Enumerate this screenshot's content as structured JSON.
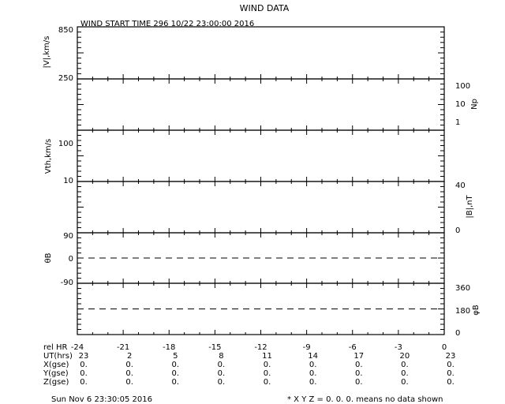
{
  "title": "WIND DATA",
  "subtitle": "WIND START TIME 296 10/22 23:00:00 2016",
  "footer_date": "Sun Nov  6 23:30:05 2016",
  "footer_note": "* X Y Z = 0. 0. 0. means no data shown",
  "chart_data": {
    "type": "line",
    "xlim": [
      -24,
      0
    ],
    "x_ticks": [
      "-24",
      "-21",
      "-18",
      "-15",
      "-12",
      "-9",
      "-6",
      "-3",
      "0"
    ],
    "row_labels": [
      "rel HR",
      "UT(hrs)",
      "X(gse)",
      "Y(gse)",
      "Z(gse)"
    ],
    "ut_ticks": [
      "23",
      "2",
      "5",
      "8",
      "11",
      "14",
      "17",
      "20",
      "23"
    ],
    "x_gse": [
      "0.",
      "0.",
      "0.",
      "0.",
      "0.",
      "0.",
      "0.",
      "0.",
      "0."
    ],
    "y_gse": [
      "0.",
      "0.",
      "0.",
      "0.",
      "0.",
      "0.",
      "0.",
      "0.",
      "0."
    ],
    "z_gse": [
      "0.",
      "0.",
      "0.",
      "0.",
      "0.",
      "0.",
      "0.",
      "0.",
      "0."
    ],
    "panels": [
      {
        "ylabel": "|V|,km/s",
        "side": "left",
        "ylim": [
          250,
          850
        ],
        "ticks": [
          "850",
          "250"
        ],
        "series": []
      },
      {
        "ylabel": "Np",
        "side": "right",
        "scale": "log",
        "ticks": [
          "100",
          "10",
          "1"
        ],
        "series": []
      },
      {
        "ylabel": "Vth,km/s",
        "side": "left",
        "scale": "log",
        "ticks": [
          "100",
          "10"
        ],
        "series": []
      },
      {
        "ylabel": "|B|,nT",
        "side": "right",
        "ylim": [
          0,
          40
        ],
        "ticks": [
          "40",
          "0"
        ],
        "series": []
      },
      {
        "ylabel": "θB",
        "side": "left",
        "ylim": [
          -90,
          90
        ],
        "ticks": [
          "90",
          "0",
          "-90"
        ],
        "reference_line": 0,
        "series": []
      },
      {
        "ylabel": "φB",
        "side": "right",
        "ylim": [
          0,
          360
        ],
        "ticks": [
          "360",
          "180",
          "0"
        ],
        "reference_line": 180,
        "series": []
      }
    ]
  }
}
